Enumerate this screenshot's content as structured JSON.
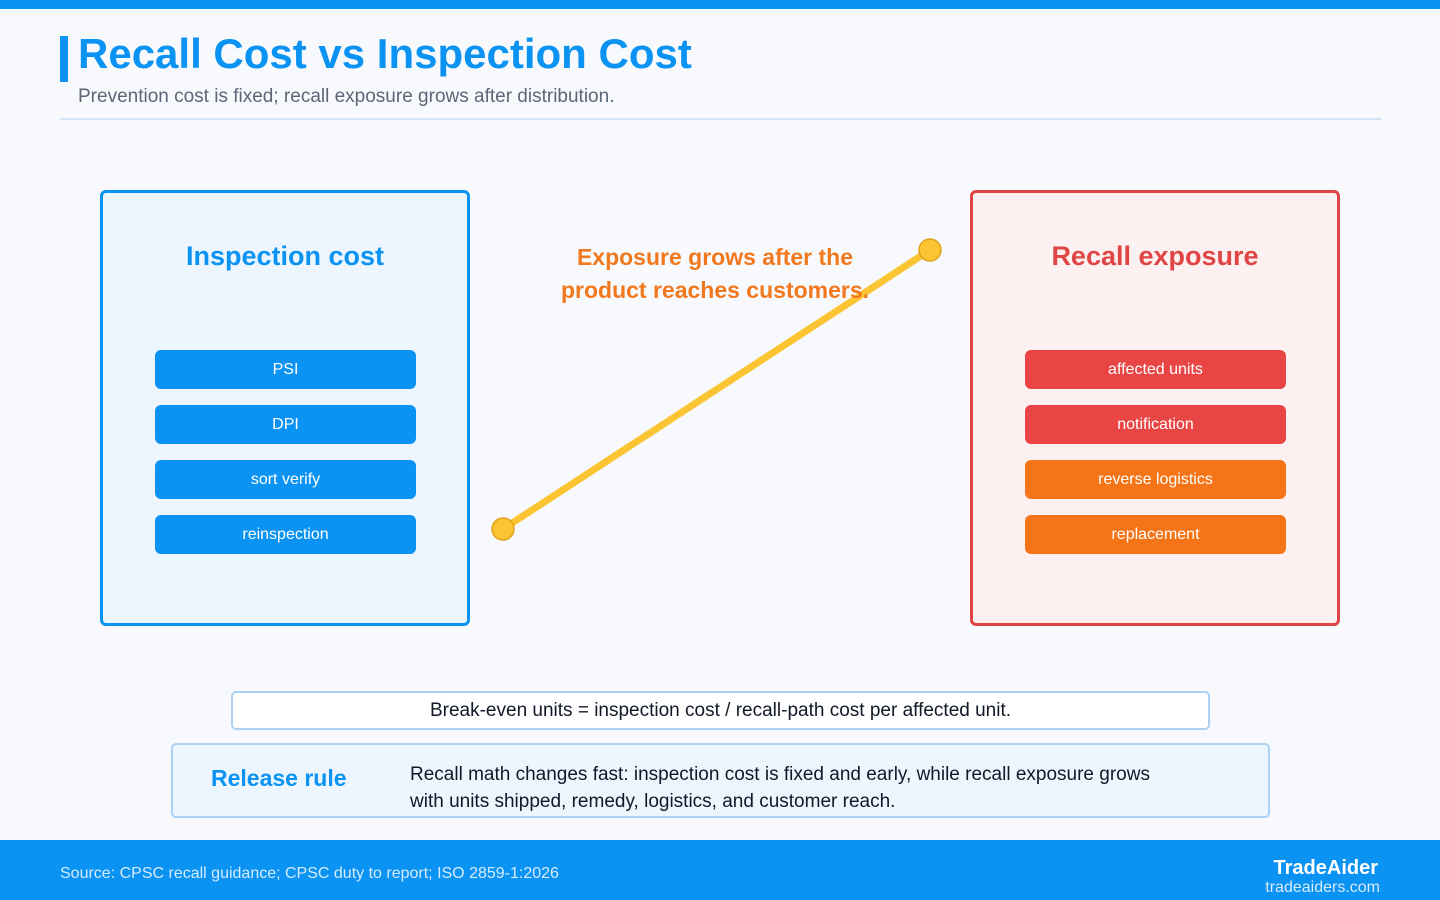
{
  "header": {
    "title": "Recall Cost vs Inspection Cost",
    "subtitle": "Prevention cost is fixed; recall exposure grows after distribution."
  },
  "inspection_panel": {
    "title": "Inspection cost",
    "items": [
      "PSI",
      "DPI",
      "sort verify",
      "reinspection"
    ]
  },
  "recall_panel": {
    "title": "Recall exposure",
    "items": [
      "affected units",
      "notification",
      "reverse logistics",
      "replacement"
    ]
  },
  "connector": {
    "callout": "Exposure grows after the product reaches customers."
  },
  "formula": {
    "text": "Break-even units = inspection cost / recall-path cost per affected unit."
  },
  "release_rule": {
    "label": "Release rule",
    "text": "Recall math changes fast: inspection cost is fixed and early, while recall exposure grows with units shipped, remedy, logistics, and customer reach."
  },
  "footer": {
    "source": "Source: CPSC recall guidance; CPSC duty to report; ISO 2859-1:2026",
    "brand": "TradeAider",
    "url": "tradeaiders.com"
  },
  "colors": {
    "primary": "#0a93f2",
    "recall_red": "#e94545",
    "logistics_orange": "#f57417",
    "connector_yellow": "#fbc433",
    "callout_orange": "#f2781e"
  }
}
